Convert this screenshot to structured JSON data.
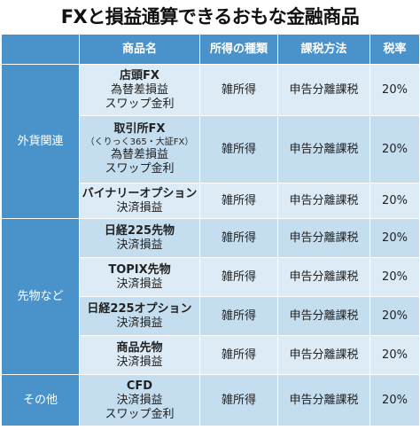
{
  "title": "FXと損益通算できるおもな金融商品",
  "headers": {
    "product": "商品名",
    "income_type": "所得の種類",
    "tax_method": "課税方法",
    "tax_rate": "税率"
  },
  "categories": {
    "fx": "外貨関連",
    "futures": "先物など",
    "other": "その他"
  },
  "rows": [
    {
      "name": "店頭FX",
      "lines": [
        "為替差損益",
        "スワップ金利"
      ],
      "sub": "",
      "income": "雑所得",
      "method": "申告分離課税",
      "rate": "20%"
    },
    {
      "name": "取引所FX",
      "sub": "（くりっく365・大証FX）",
      "lines": [
        "為替差損益",
        "スワップ金利"
      ],
      "income": "雑所得",
      "method": "申告分離課税",
      "rate": "20%"
    },
    {
      "name": "バイナリーオプション",
      "sub": "",
      "lines": [
        "決済損益"
      ],
      "income": "雑所得",
      "method": "申告分離課税",
      "rate": "20%"
    },
    {
      "name": "日経225先物",
      "sub": "",
      "lines": [
        "決済損益"
      ],
      "income": "雑所得",
      "method": "申告分離課税",
      "rate": "20%"
    },
    {
      "name": "TOPIX先物",
      "sub": "",
      "lines": [
        "決済損益"
      ],
      "income": "雑所得",
      "method": "申告分離課税",
      "rate": "20%"
    },
    {
      "name": "日経225オプション",
      "sub": "",
      "lines": [
        "決済損益"
      ],
      "income": "雑所得",
      "method": "申告分離課税",
      "rate": "20%"
    },
    {
      "name": "商品先物",
      "sub": "",
      "lines": [
        "決済損益"
      ],
      "income": "雑所得",
      "method": "申告分離課税",
      "rate": "20%"
    },
    {
      "name": "CFD",
      "sub": "",
      "lines": [
        "決済損益",
        "スワップ金利"
      ],
      "income": "雑所得",
      "method": "申告分離課税",
      "rate": "20%"
    }
  ]
}
